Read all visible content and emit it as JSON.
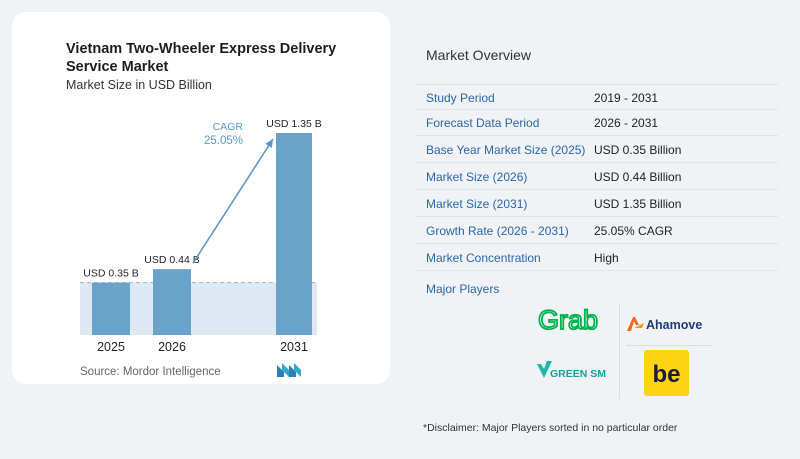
{
  "chart_data": {
    "type": "bar",
    "title": "Vietnam Two-Wheeler Express Delivery Service Market",
    "subtitle": "Market Size in USD Billion",
    "categories": [
      "2025",
      "2026",
      "2031"
    ],
    "values": [
      0.35,
      0.44,
      1.35
    ],
    "data_labels": [
      "USD 0.35 B",
      "USD 0.44 B",
      "USD 1.35 B"
    ],
    "annotation": {
      "label": "CAGR",
      "value": "25.05%"
    },
    "ylim": [
      0,
      1.35
    ],
    "bar_color": "#6aa3c9",
    "area_color": "#dde8f2",
    "arrow_color": "#5d98c4",
    "grid": false
  },
  "source": "Source:  Mordor Intelligence",
  "overview": {
    "title": "Market Overview",
    "rows": [
      {
        "label": "Study Period",
        "value": "2019 - 2031"
      },
      {
        "label": "Forecast Data Period",
        "value": "2026 - 2031"
      },
      {
        "label": "Base Year Market Size (2025)",
        "value": "USD 0.35 Billion"
      },
      {
        "label": "Market Size (2026)",
        "value": "USD 0.44 Billion"
      },
      {
        "label": "Market Size (2031)",
        "value": "USD 1.35 Billion"
      },
      {
        "label": "Growth Rate (2026 - 2031)",
        "value": "25.05% CAGR"
      },
      {
        "label": "Market Concentration",
        "value": "High"
      }
    ],
    "players_title": "Major Players",
    "players": [
      "Grab",
      "Ahamove",
      "GREEN SM",
      "be"
    ],
    "disclaimer": "*Disclaimer: Major Players sorted in no particular order"
  },
  "colors": {
    "label_blue": "#2a66a8",
    "grab_green": "#00b14f",
    "ahamove_orange": "#f26522",
    "be_yellow": "#fcd312"
  }
}
